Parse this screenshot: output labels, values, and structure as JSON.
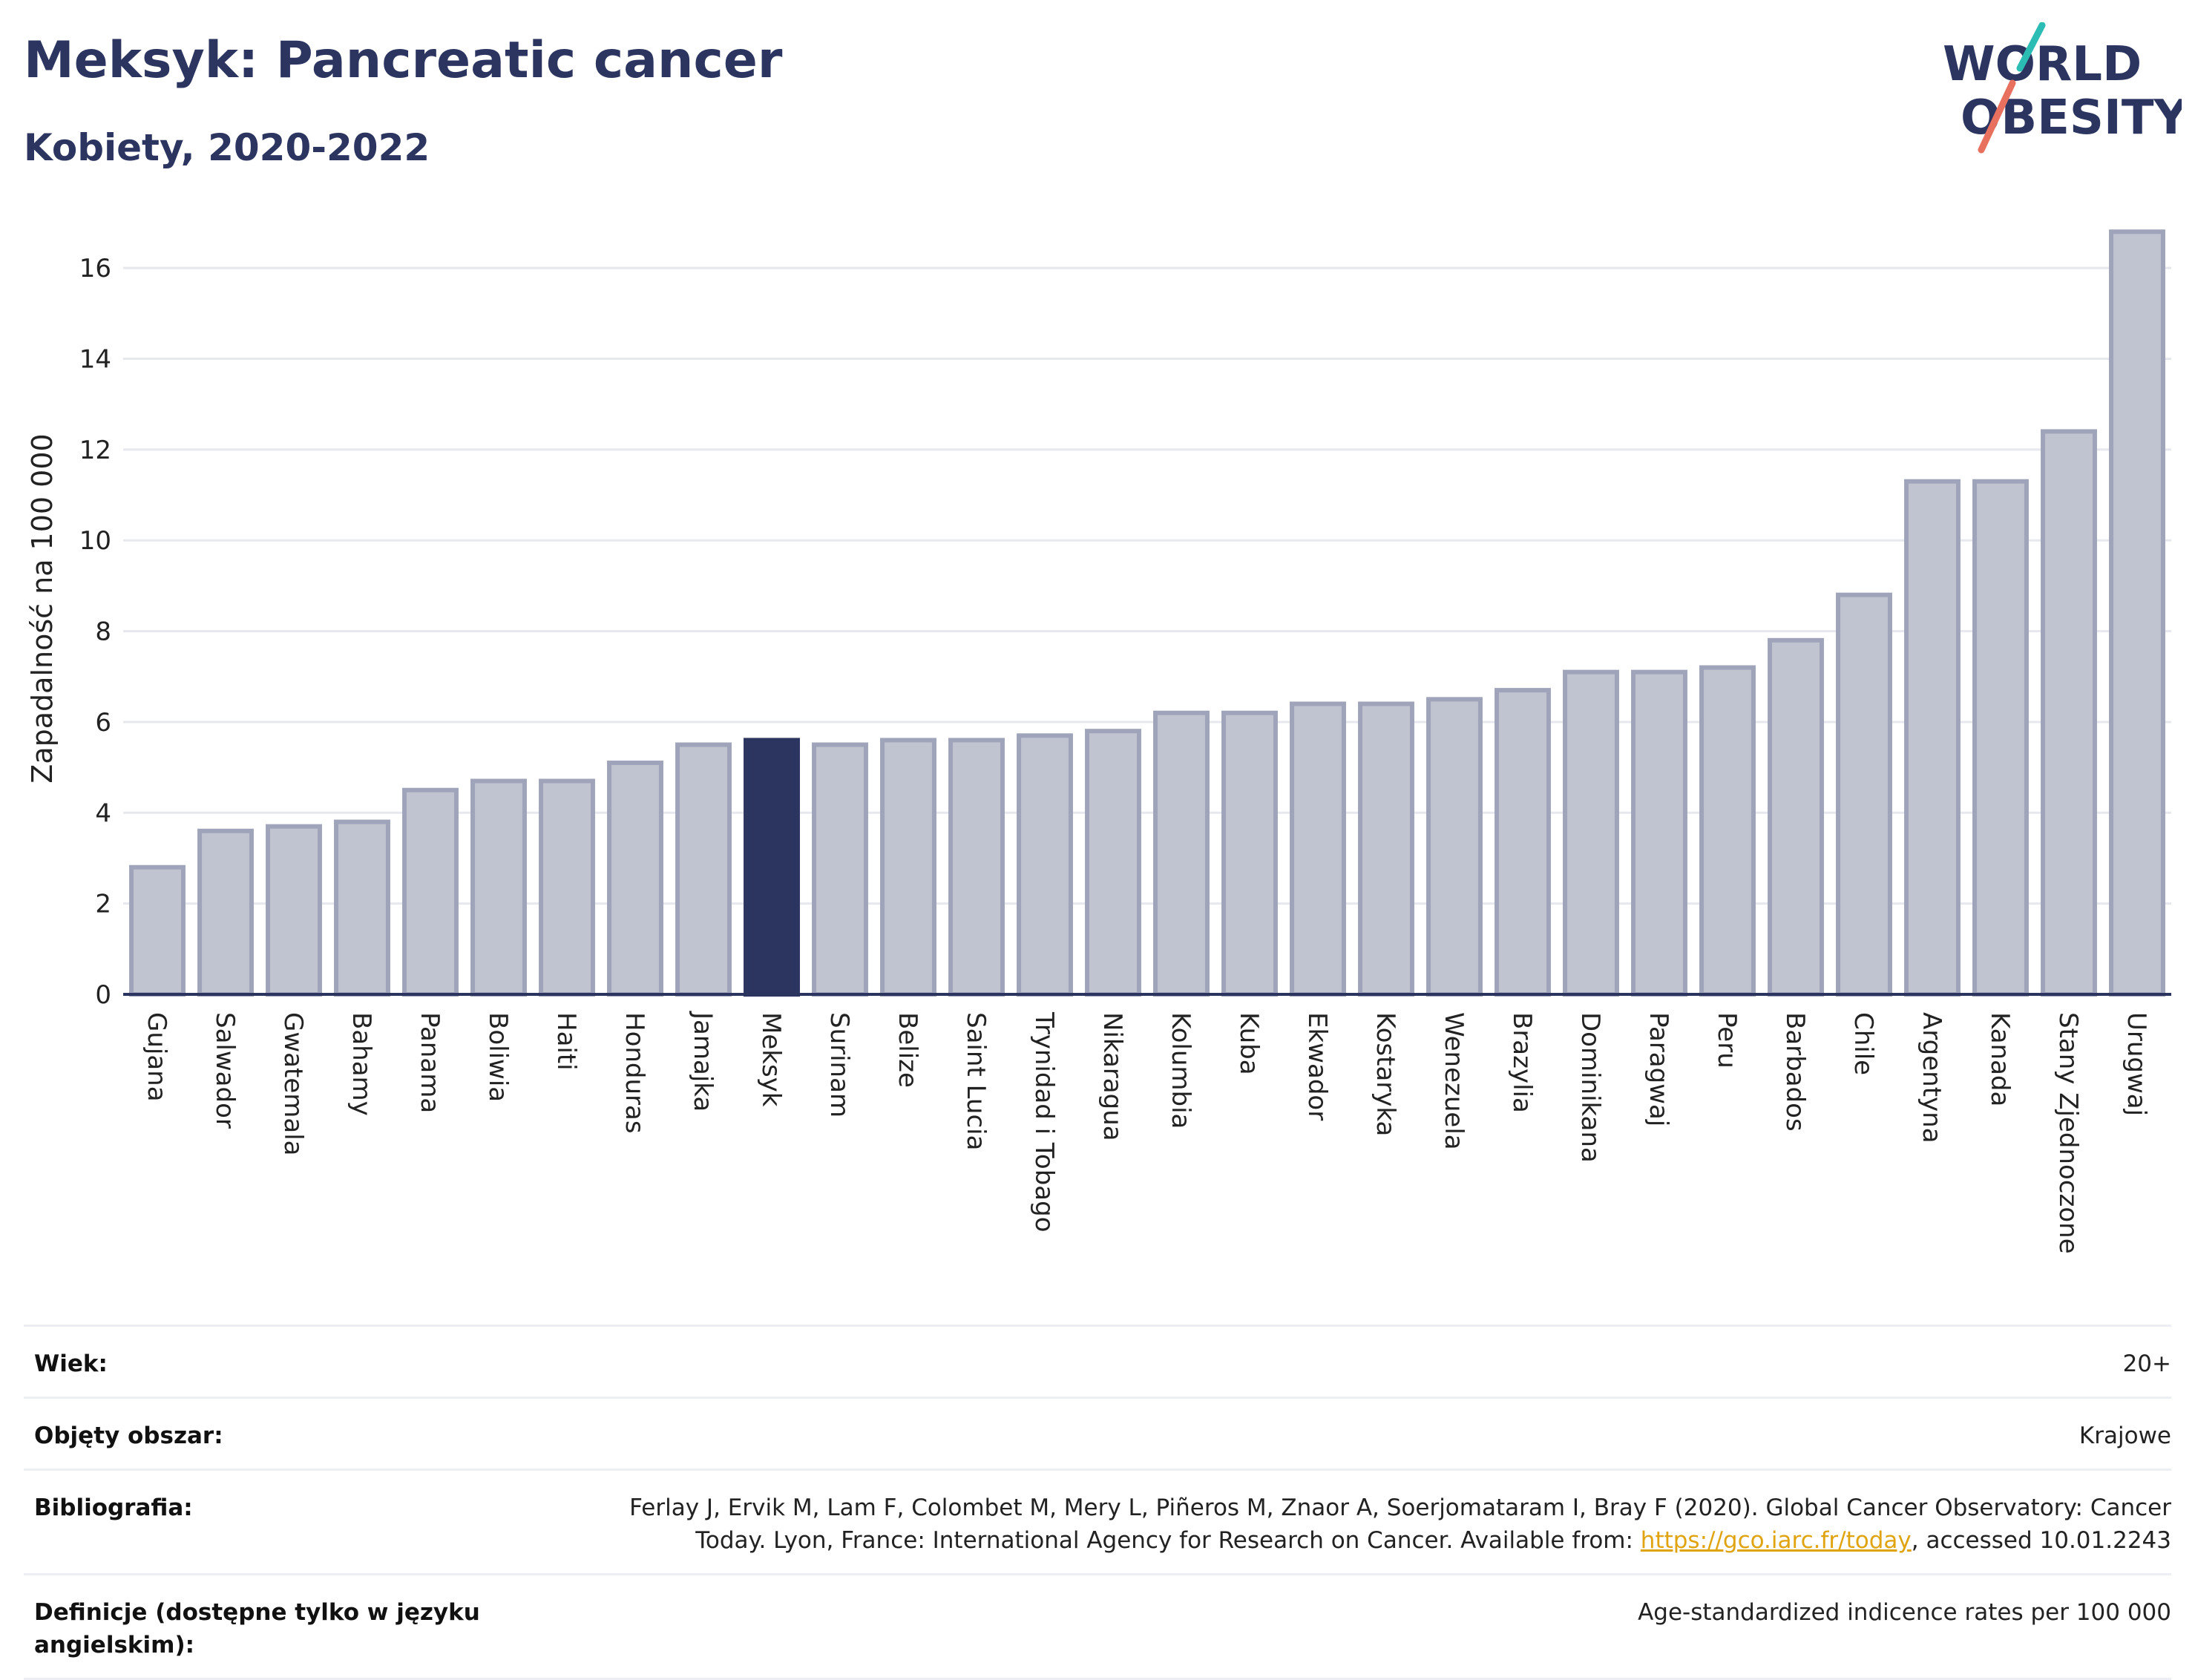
{
  "header": {
    "title": "Meksyk: Pancreatic cancer",
    "subtitle": "Kobiety, 2020-2022"
  },
  "logo": {
    "line1": "WORLD",
    "line2": "OBESITY",
    "accent_teal": "#2bbdb4",
    "accent_coral": "#e8705e",
    "text_color": "#2b3560"
  },
  "colors": {
    "bar_default": "#c0c3d0",
    "bar_border": "#9fa4ba",
    "bar_highlight": "#2b3560",
    "grid": "#e6e8ee",
    "axis": "#2b3560"
  },
  "chart_data": {
    "type": "bar",
    "ylabel": "Zapadalność na 100 000",
    "ylim": [
      0,
      17
    ],
    "yticks": [
      0,
      2,
      4,
      6,
      8,
      10,
      12,
      14,
      16
    ],
    "grid": true,
    "highlight": "Meksyk",
    "categories": [
      "Gujana",
      "Salwador",
      "Gwatemala",
      "Bahamy",
      "Panama",
      "Boliwia",
      "Haiti",
      "Honduras",
      "Jamajka",
      "Meksyk",
      "Surinam",
      "Belize",
      "Saint Lucia",
      "Trynidad i Tobago",
      "Nikaragua",
      "Kolumbia",
      "Kuba",
      "Ekwador",
      "Kostaryka",
      "Wenezuela",
      "Brazylia",
      "Dominikana",
      "Paragwaj",
      "Peru",
      "Barbados",
      "Chile",
      "Argentyna",
      "Kanada",
      "Stany Zjednoczone",
      "Urugwaj"
    ],
    "values": [
      2.8,
      3.6,
      3.7,
      3.8,
      4.5,
      4.7,
      4.7,
      5.1,
      5.5,
      5.6,
      5.5,
      5.6,
      5.6,
      5.7,
      5.8,
      6.2,
      6.2,
      6.4,
      6.4,
      6.5,
      6.7,
      7.1,
      7.1,
      7.2,
      7.8,
      8.8,
      11.3,
      11.3,
      12.4,
      16.8
    ]
  },
  "info": {
    "rows": [
      {
        "label": "Wiek:",
        "value": "20+"
      },
      {
        "label": "Objęty obszar:",
        "value": "Krajowe"
      },
      {
        "label": "Bibliografia:",
        "value_line1": "Ferlay J, Ervik M, Lam F, Colombet M, Mery L, Piñeros M, Znaor A, Soerjomataram I, Bray F (2020). Global Cancer Observatory: Cancer",
        "value_line2_pre": "Today. Lyon, France: International Agency for Research on Cancer. Available from: ",
        "link": "https://gco.iarc.fr/today",
        "value_line2_post": ", accessed 10.01.2243"
      },
      {
        "label": "Definicje (dostępne tylko w języku angielskim):",
        "value": "Age-standardized indicence rates per 100 000"
      }
    ]
  }
}
